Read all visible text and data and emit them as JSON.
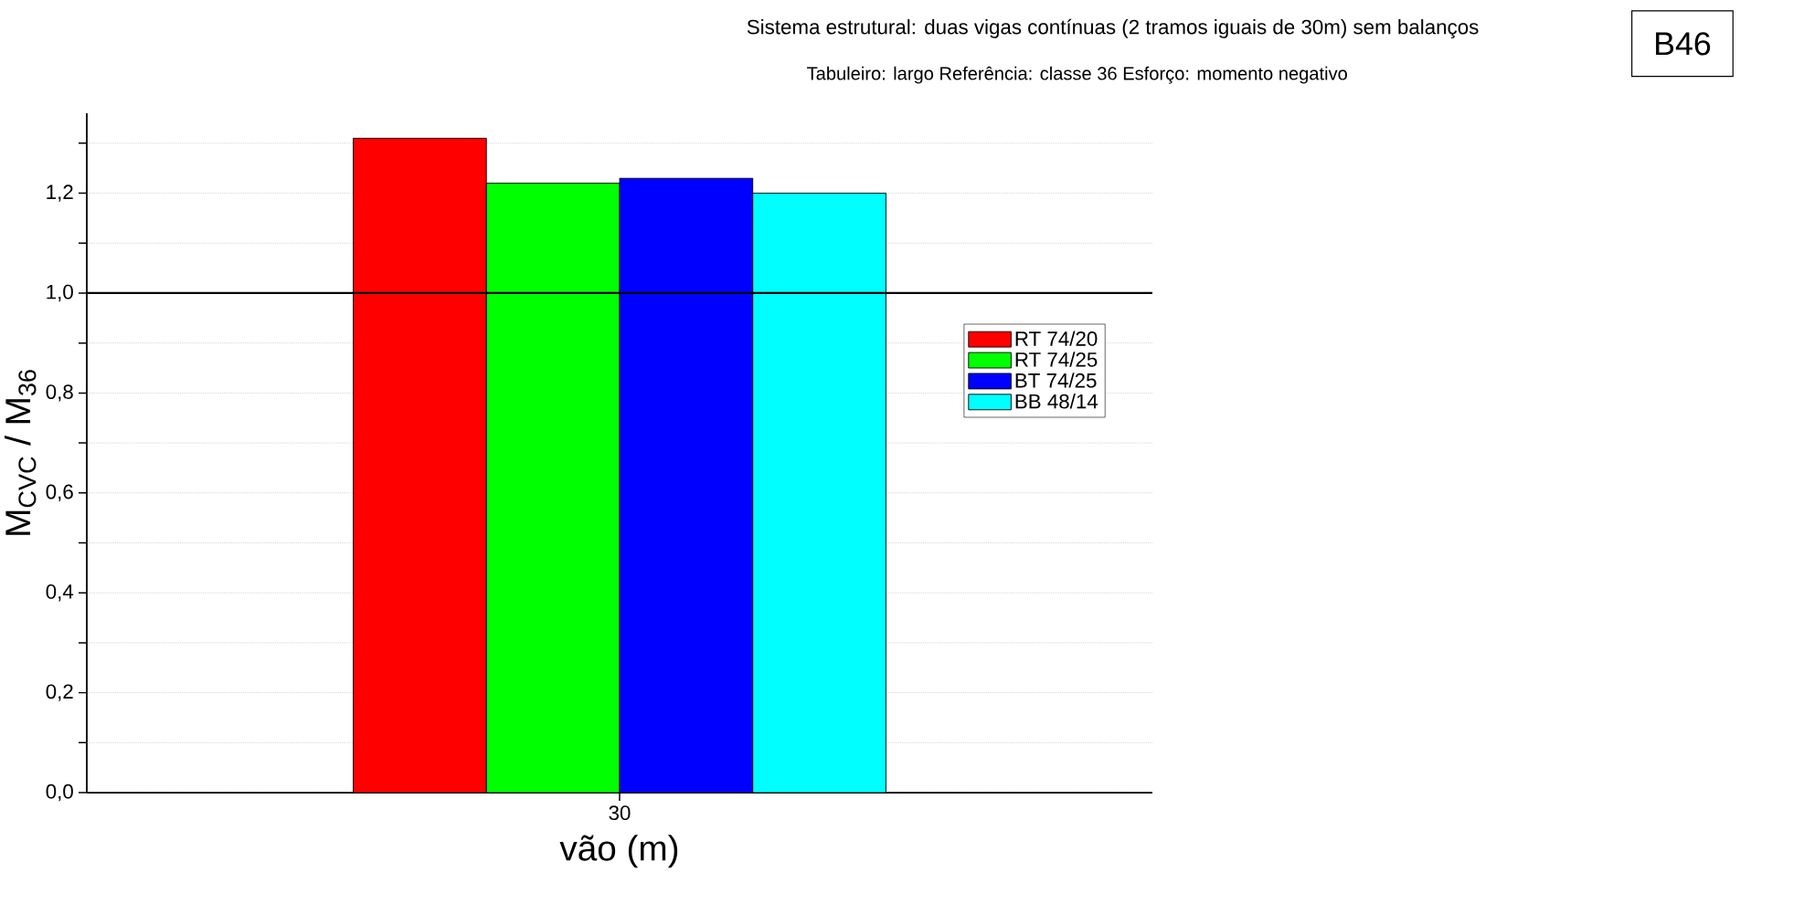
{
  "chart_data": {
    "type": "bar",
    "title": "Sistema estrutural: duas vigas contínuas (2 tramos iguais de 30m) sem balanços",
    "subtitle": "Tabuleiro: largo     Referência: classe 36     Esforço: momento negativo",
    "annotations": [
      "B46"
    ],
    "xlabel": "vão (m)",
    "ylabel": "M$_{CVC}$ / M$_{36}$",
    "categories": [
      "30"
    ],
    "series": [
      {
        "name": "RT 74/20",
        "color": "#ff0000",
        "values": [
          1.31
        ]
      },
      {
        "name": "RT 74/25",
        "color": "#00ff00",
        "values": [
          1.22
        ]
      },
      {
        "name": "BT 74/25",
        "color": "#0000ff",
        "values": [
          1.23
        ]
      },
      {
        "name": "BB 48/14",
        "color": "#00ffff",
        "values": [
          1.2
        ]
      }
    ],
    "ylim": [
      0,
      1.36
    ],
    "yticks": [
      {
        "value": 0,
        "label": "0,0"
      },
      {
        "value": 0.1,
        "label": null
      },
      {
        "value": 0.2,
        "label": "0,2"
      },
      {
        "value": 0.3,
        "label": null
      },
      {
        "value": 0.4,
        "label": "0,4"
      },
      {
        "value": 0.5,
        "label": null
      },
      {
        "value": 0.6,
        "label": "0,6"
      },
      {
        "value": 0.7,
        "label": null
      },
      {
        "value": 0.8,
        "label": "0,8"
      },
      {
        "value": 0.9,
        "label": null
      },
      {
        "value": 1.0,
        "label": "1,0"
      },
      {
        "value": 1.1,
        "label": null
      },
      {
        "value": 1.2,
        "label": "1,2"
      },
      {
        "value": 1.3,
        "label": null
      }
    ],
    "ref_lines": [
      {
        "axis": "y",
        "value": 1.0,
        "color": "#000000"
      }
    ],
    "grid": "y",
    "legend": "right"
  }
}
